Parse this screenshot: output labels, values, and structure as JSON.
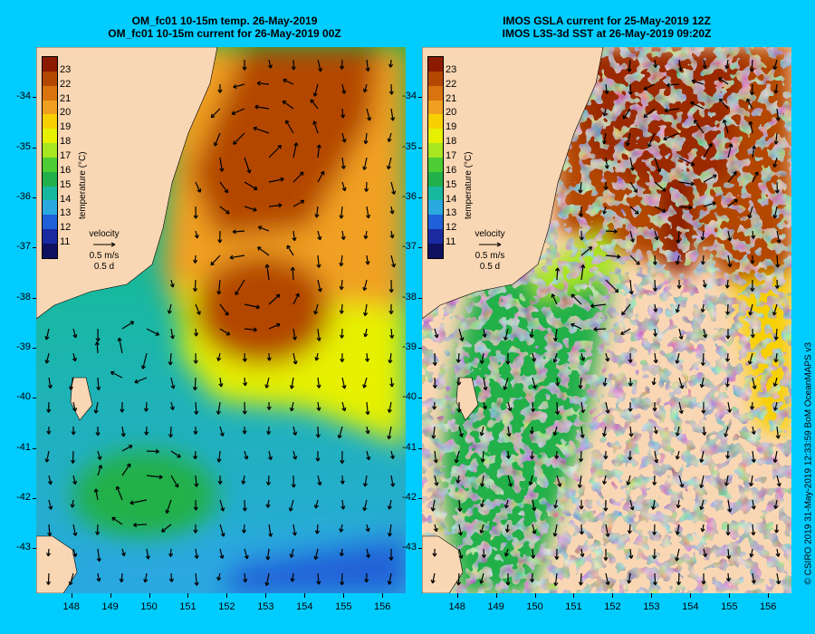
{
  "left_panel": {
    "title_line1": "OM_fc01 10-15m temp. 26-May-2019",
    "title_line2": "OM_fc01 10-15m current for 26-May-2019 00Z"
  },
  "right_panel": {
    "title_line1": "IMOS GSLA current for 25-May-2019 12Z",
    "title_line2": "IMOS L3S-3d SST at 26-May-2019 09:20Z"
  },
  "y_ticks": [
    "-34",
    "-35",
    "-36",
    "-37",
    "-38",
    "-39",
    "-40",
    "-41",
    "-42",
    "-43"
  ],
  "x_ticks": [
    "148",
    "149",
    "150",
    "151",
    "152",
    "153",
    "154",
    "155",
    "156"
  ],
  "colorbar": {
    "labels": [
      "23",
      "22",
      "21",
      "20",
      "19",
      "18",
      "17",
      "16",
      "15",
      "14",
      "13",
      "12",
      "11"
    ],
    "title": "temperature (°C)",
    "colors": [
      "#8b1a00",
      "#b34700",
      "#d9730d",
      "#f0a020",
      "#f7d000",
      "#e6f000",
      "#a8e620",
      "#4dcc33",
      "#22b04a",
      "#18b8a0",
      "#2aa8e0",
      "#2060d8",
      "#1a2aa0",
      "#101060"
    ]
  },
  "velocity_legend": {
    "title": "velocity",
    "speed": "0.5 m/s",
    "duration": "0.5 d"
  },
  "credit": "© CSIRO 2019   31-May-2019 12:33:59 BoM OceanMAPS v3",
  "colors": {
    "background": "#00ccff",
    "land": "#fad7b4"
  },
  "map_extent": {
    "lon": [
      147.1,
      156.6
    ],
    "lat": [
      -43.9,
      -33.0
    ]
  }
}
